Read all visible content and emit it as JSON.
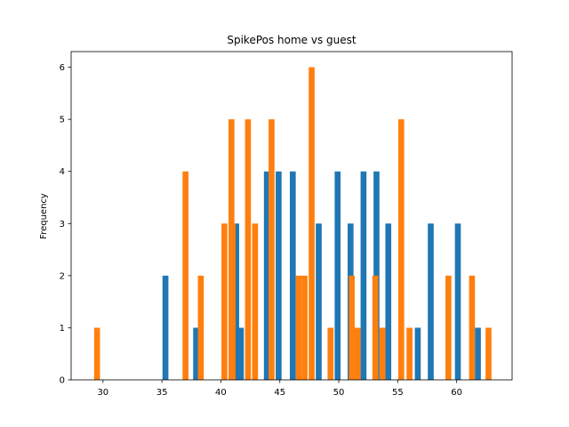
{
  "chart_data": {
    "type": "bar",
    "title": "SpikePos home vs guest",
    "xlabel": "",
    "ylabel": "Frequency",
    "xlim": [
      27.3,
      64.7
    ],
    "ylim": [
      0,
      6.3
    ],
    "xticks": [
      30,
      35,
      40,
      45,
      50,
      55,
      60
    ],
    "yticks": [
      0,
      1,
      2,
      3,
      4,
      5,
      6
    ],
    "grid": false,
    "legend": "none",
    "bar_width": 0.5,
    "series": [
      {
        "color": "#1f77b4",
        "points": [
          {
            "x": 35.3,
            "y": 2
          },
          {
            "x": 37.9,
            "y": 1
          },
          {
            "x": 41.3,
            "y": 3
          },
          {
            "x": 41.7,
            "y": 1
          },
          {
            "x": 43.9,
            "y": 4
          },
          {
            "x": 44.9,
            "y": 4
          },
          {
            "x": 46.1,
            "y": 4
          },
          {
            "x": 48.3,
            "y": 3
          },
          {
            "x": 49.9,
            "y": 4
          },
          {
            "x": 51.0,
            "y": 3
          },
          {
            "x": 52.1,
            "y": 4
          },
          {
            "x": 53.2,
            "y": 4
          },
          {
            "x": 54.2,
            "y": 3
          },
          {
            "x": 56.7,
            "y": 1
          },
          {
            "x": 57.8,
            "y": 3
          },
          {
            "x": 60.1,
            "y": 3
          },
          {
            "x": 61.8,
            "y": 1
          }
        ]
      },
      {
        "color": "#ff7f0e",
        "points": [
          {
            "x": 29.5,
            "y": 1
          },
          {
            "x": 37.0,
            "y": 4
          },
          {
            "x": 38.3,
            "y": 2
          },
          {
            "x": 40.3,
            "y": 3
          },
          {
            "x": 40.9,
            "y": 5
          },
          {
            "x": 41.0,
            "y": 3
          },
          {
            "x": 42.3,
            "y": 5
          },
          {
            "x": 42.9,
            "y": 3
          },
          {
            "x": 44.3,
            "y": 5
          },
          {
            "x": 46.6,
            "y": 2
          },
          {
            "x": 47.1,
            "y": 2
          },
          {
            "x": 47.7,
            "y": 6
          },
          {
            "x": 49.3,
            "y": 1
          },
          {
            "x": 51.1,
            "y": 2
          },
          {
            "x": 51.6,
            "y": 1
          },
          {
            "x": 53.1,
            "y": 2
          },
          {
            "x": 53.7,
            "y": 1
          },
          {
            "x": 55.3,
            "y": 5
          },
          {
            "x": 56.0,
            "y": 1
          },
          {
            "x": 59.3,
            "y": 2
          },
          {
            "x": 61.3,
            "y": 2
          },
          {
            "x": 62.7,
            "y": 1
          }
        ]
      }
    ]
  }
}
